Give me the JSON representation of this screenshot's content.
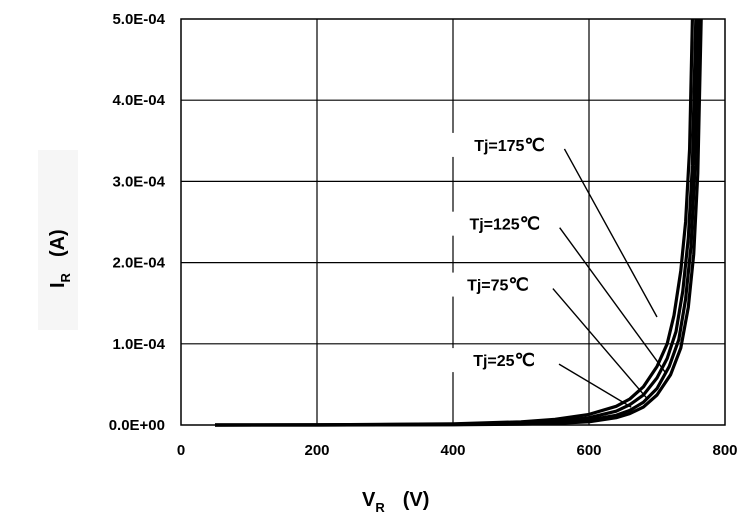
{
  "chart_data": {
    "type": "line",
    "title": "",
    "xlabel": {
      "main": "V",
      "sub": "R",
      "unit": "(V)"
    },
    "ylabel": {
      "main": "I",
      "sub": "R",
      "unit": "(A)"
    },
    "xlim": [
      0,
      800
    ],
    "ylim": [
      0,
      0.0005
    ],
    "x_ticks": [
      0,
      200,
      400,
      600,
      800
    ],
    "x_tick_labels": [
      "0",
      "200",
      "400",
      "600",
      "800"
    ],
    "y_ticks": [
      0,
      0.0001,
      0.0002,
      0.0003,
      0.0004,
      0.0005
    ],
    "y_tick_labels": [
      "0.0E+00",
      "1.0E-04",
      "2.0E-04",
      "3.0E-04",
      "4.0E-04",
      "5.0E-04"
    ],
    "grid": true,
    "series": [
      {
        "name": "Tj=175℃",
        "label": "Tj=175",
        "unit": "℃",
        "x": [
          50,
          200,
          400,
          500,
          550,
          600,
          640,
          660,
          680,
          700,
          715,
          725,
          735,
          742,
          748,
          752
        ],
        "values": [
          0,
          2e-07,
          1.5e-06,
          4e-06,
          7e-06,
          1.3e-05,
          2.3e-05,
          3.2e-05,
          4.7e-05,
          7.2e-05,
          0.0001,
          0.000135,
          0.00019,
          0.00025,
          0.00034,
          0.0005
        ]
      },
      {
        "name": "Tj=125℃",
        "label": "Tj=125",
        "unit": "℃",
        "x": [
          50,
          200,
          400,
          500,
          550,
          600,
          640,
          660,
          680,
          700,
          715,
          728,
          738,
          746,
          752,
          757
        ],
        "values": [
          0,
          1e-07,
          1e-06,
          2.5e-06,
          4.5e-06,
          9e-06,
          1.7e-05,
          2.5e-05,
          3.7e-05,
          5.8e-05,
          8.2e-05,
          0.000115,
          0.000165,
          0.00023,
          0.00032,
          0.0005
        ]
      },
      {
        "name": "Tj=75℃",
        "label": "Tj=75",
        "unit": "℃",
        "x": [
          50,
          200,
          400,
          500,
          550,
          600,
          640,
          660,
          680,
          700,
          718,
          732,
          742,
          750,
          756,
          761
        ],
        "values": [
          0,
          0,
          6e-07,
          1.5e-06,
          3e-06,
          6e-06,
          1.2e-05,
          1.8e-05,
          2.8e-05,
          4.5e-05,
          7.2e-05,
          0.000105,
          0.000155,
          0.00022,
          0.00032,
          0.0005
        ]
      },
      {
        "name": "Tj=25℃",
        "label": "Tj=25",
        "unit": "℃",
        "x": [
          50,
          200,
          400,
          500,
          550,
          600,
          640,
          660,
          680,
          700,
          720,
          735,
          746,
          754,
          760,
          765
        ],
        "values": [
          0,
          0,
          3e-07,
          1e-06,
          2e-06,
          4e-06,
          9e-06,
          1.4e-05,
          2.2e-05,
          3.7e-05,
          6.2e-05,
          9.5e-05,
          0.000145,
          0.00021,
          0.00031,
          0.0005
        ]
      }
    ],
    "annotations": [
      {
        "series": "Tj=175℃",
        "text_x": 483,
        "text_y": 0.00034,
        "arrow_x": 700,
        "arrow_y": 0.000133
      },
      {
        "series": "Tj=125℃",
        "text_x": 476,
        "text_y": 0.000243,
        "arrow_x": 712,
        "arrow_y": 6.5e-05
      },
      {
        "series": "Tj=75℃",
        "text_x": 466,
        "text_y": 0.000168,
        "arrow_x": 686,
        "arrow_y": 3.2e-05
      },
      {
        "series": "Tj=25℃",
        "text_x": 475,
        "text_y": 7.5e-05,
        "arrow_x": 662,
        "arrow_y": 2.2e-05
      }
    ]
  }
}
